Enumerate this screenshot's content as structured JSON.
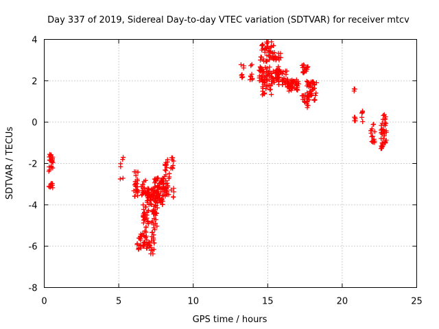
{
  "chart_data": {
    "type": "scatter",
    "title": "Day 337 of 2019, Sidereal Day-to-day VTEC variation (SDTVAR) for receiver mtcv",
    "xlabel": "GPS time / hours",
    "ylabel": "SDTVAR / TECUs",
    "xlim": [
      0,
      25
    ],
    "ylim": [
      -8,
      4
    ],
    "xticks": [
      0,
      5,
      10,
      15,
      20,
      25
    ],
    "yticks": [
      -8,
      -6,
      -4,
      -2,
      0,
      2,
      4
    ],
    "grid": true,
    "marker": "+",
    "color": "#ff0000",
    "series": [
      {
        "name": "SDTVAR",
        "clusters": [
          {
            "x": [
              0.3,
              0.6
            ],
            "y": [
              -2.4,
              -1.5
            ],
            "n": 24
          },
          {
            "x": [
              0.3,
              0.6
            ],
            "y": [
              -3.2,
              -2.9
            ],
            "n": 10
          },
          {
            "x": [
              5.1,
              5.3
            ],
            "y": [
              -2.2,
              -1.7
            ],
            "n": 4
          },
          {
            "x": [
              5.1,
              5.3
            ],
            "y": [
              -2.9,
              -2.7
            ],
            "n": 2
          },
          {
            "x": [
              6.0,
              6.3
            ],
            "y": [
              -3.6,
              -2.4
            ],
            "n": 24
          },
          {
            "x": [
              6.2,
              6.5
            ],
            "y": [
              -6.2,
              -5.5
            ],
            "n": 8
          },
          {
            "x": [
              6.4,
              7.1
            ],
            "y": [
              -6.1,
              -5.4
            ],
            "n": 26
          },
          {
            "x": [
              6.6,
              7.0
            ],
            "y": [
              -5.4,
              -3.8
            ],
            "n": 32
          },
          {
            "x": [
              6.5,
              7.0
            ],
            "y": [
              -3.6,
              -2.8
            ],
            "n": 20
          },
          {
            "x": [
              7.0,
              7.4
            ],
            "y": [
              -6.4,
              -5.6
            ],
            "n": 14
          },
          {
            "x": [
              7.2,
              7.6
            ],
            "y": [
              -5.6,
              -4.0
            ],
            "n": 28
          },
          {
            "x": [
              6.9,
              8.0
            ],
            "y": [
              -4.0,
              -3.2
            ],
            "n": 80
          },
          {
            "x": [
              7.4,
              8.0
            ],
            "y": [
              -3.2,
              -2.7
            ],
            "n": 30
          },
          {
            "x": [
              8.0,
              8.4
            ],
            "y": [
              -3.6,
              -2.2
            ],
            "n": 30
          },
          {
            "x": [
              8.1,
              8.3
            ],
            "y": [
              -2.2,
              -1.8
            ],
            "n": 8
          },
          {
            "x": [
              8.5,
              8.7
            ],
            "y": [
              -2.3,
              -1.7
            ],
            "n": 8
          },
          {
            "x": [
              8.5,
              8.7
            ],
            "y": [
              -3.7,
              -3.2
            ],
            "n": 5
          },
          {
            "x": [
              13.2,
              13.4
            ],
            "y": [
              2.1,
              2.8
            ],
            "n": 8
          },
          {
            "x": [
              13.8,
              14.0
            ],
            "y": [
              1.7,
              3.1
            ],
            "n": 8
          },
          {
            "x": [
              14.4,
              15.8
            ],
            "y": [
              1.9,
              2.7
            ],
            "n": 70
          },
          {
            "x": [
              14.5,
              15.4
            ],
            "y": [
              2.9,
              3.9
            ],
            "n": 40
          },
          {
            "x": [
              14.6,
              15.3
            ],
            "y": [
              1.3,
              2.0
            ],
            "n": 20
          },
          {
            "x": [
              15.3,
              15.9
            ],
            "y": [
              3.0,
              3.4
            ],
            "n": 16
          },
          {
            "x": [
              15.7,
              16.3
            ],
            "y": [
              1.7,
              2.5
            ],
            "n": 25
          },
          {
            "x": [
              16.3,
              17.1
            ],
            "y": [
              1.5,
              2.1
            ],
            "n": 45
          },
          {
            "x": [
              17.3,
              17.7
            ],
            "y": [
              2.3,
              2.8
            ],
            "n": 16
          },
          {
            "x": [
              17.3,
              17.8
            ],
            "y": [
              0.7,
              1.3
            ],
            "n": 20
          },
          {
            "x": [
              17.6,
              18.3
            ],
            "y": [
              1.2,
              2.0
            ],
            "n": 35
          },
          {
            "x": [
              17.9,
              18.2
            ],
            "y": [
              1.0,
              1.1
            ],
            "n": 4
          },
          {
            "x": [
              20.8,
              20.9
            ],
            "y": [
              1.5,
              1.7
            ],
            "n": 3
          },
          {
            "x": [
              20.8,
              20.9
            ],
            "y": [
              0.0,
              0.6
            ],
            "n": 5
          },
          {
            "x": [
              21.3,
              21.4
            ],
            "y": [
              0.0,
              0.9
            ],
            "n": 6
          },
          {
            "x": [
              21.9,
              22.2
            ],
            "y": [
              -1.0,
              -0.0
            ],
            "n": 16
          },
          {
            "x": [
              22.6,
              23.0
            ],
            "y": [
              -1.3,
              0.4
            ],
            "n": 40
          }
        ]
      }
    ]
  }
}
